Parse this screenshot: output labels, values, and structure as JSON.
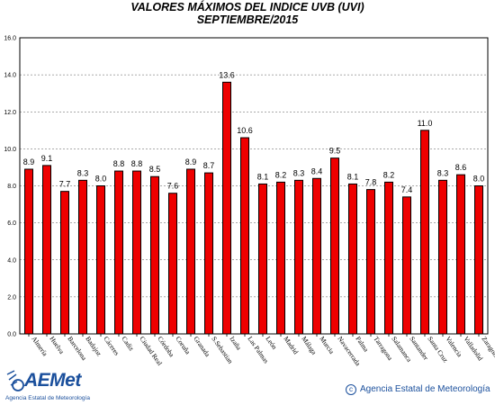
{
  "chart_data": {
    "type": "bar",
    "title": "VALORES MÁXIMOS DEL INDICE UVB (UVI)",
    "subtitle": "SEPTIEMBRE/2015",
    "categories": [
      "Almería",
      "Huelva",
      "Barcelona",
      "Badajoz",
      "Cáceres",
      "Cadiz",
      "Ciudad Real",
      "Córdoba",
      "Coruña",
      "Granada",
      "S.Sebastian",
      "Izaña",
      "Las Palmas",
      "León",
      "Madrid",
      "Málaga",
      "Murcia",
      "Navacerrada",
      "Palma",
      "Tarragona",
      "Salamanca",
      "Santander",
      "Santa Cruz",
      "Valencia",
      "Valladolid",
      "Zaragoza"
    ],
    "values": [
      8.9,
      9.1,
      7.7,
      8.3,
      8.0,
      8.8,
      8.8,
      8.5,
      7.6,
      8.9,
      8.7,
      13.6,
      10.6,
      8.1,
      8.2,
      8.3,
      8.4,
      9.5,
      8.1,
      7.8,
      8.2,
      7.4,
      11.0,
      8.3,
      8.6,
      8.0
    ],
    "value_labels": [
      "8.9",
      "9.1",
      "7.7",
      "8.3",
      "8.0",
      "8.8",
      "8.8",
      "8.5",
      "7.6",
      "8.9",
      "8.7",
      "13.6",
      "10.6",
      "8.1",
      "8.2",
      "8.3",
      "8.4",
      "9.5",
      "8.1",
      "7.8",
      "8.2",
      "7.4",
      "11.0",
      "8.3",
      "8.6",
      "8.0"
    ],
    "ylim": [
      0,
      16
    ],
    "yticks": [
      "0.0",
      "2.0",
      "4.0",
      "6.0",
      "8.0",
      "10.0",
      "12.0",
      "14.0",
      "16.0"
    ],
    "grid": true,
    "bar_color": "#ee0000",
    "xlabel": "",
    "ylabel": ""
  },
  "logo": {
    "name": "AEMet",
    "subtitle": "Agencia Estatal de Meteorología"
  },
  "footer": {
    "copyright_symbol": "c",
    "copyright_text": "Agencia Estatal de Meteorología"
  },
  "colors": {
    "brand": "#1a4f9c",
    "bar": "#ee0000"
  }
}
